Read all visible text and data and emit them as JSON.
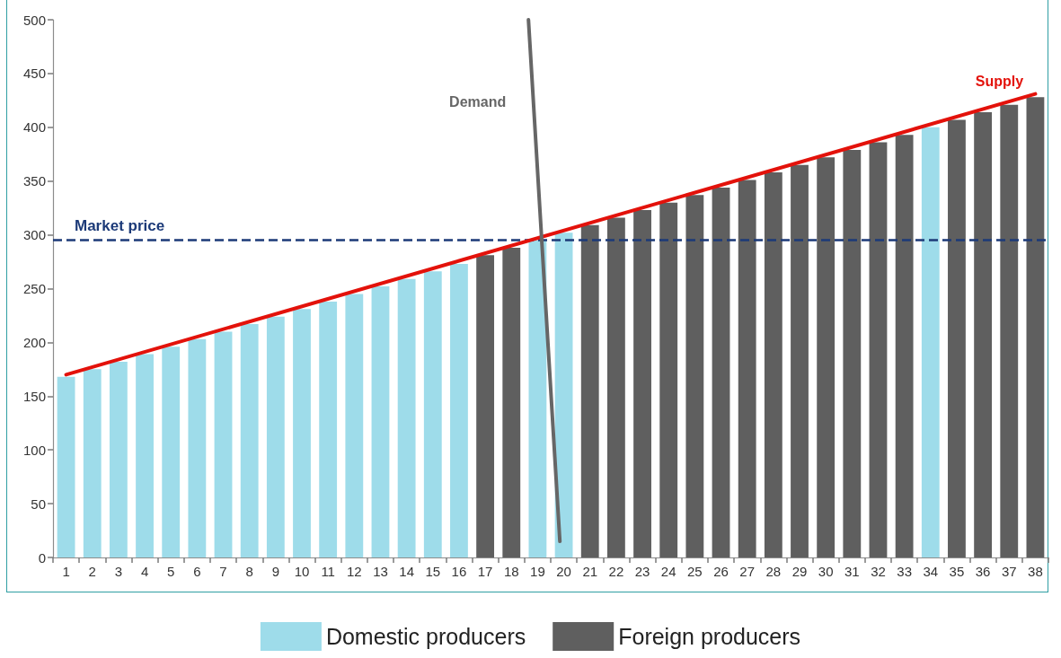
{
  "chart_data": {
    "type": "bar",
    "x": [
      1,
      2,
      3,
      4,
      5,
      6,
      7,
      8,
      9,
      10,
      11,
      12,
      13,
      14,
      15,
      16,
      17,
      18,
      19,
      20,
      21,
      22,
      23,
      24,
      25,
      26,
      27,
      28,
      29,
      30,
      31,
      32,
      33,
      34,
      35,
      36,
      37,
      38
    ],
    "xlim": [
      0.5,
      38.5
    ],
    "xticks": [
      {
        "value": 0.5,
        "label": null
      },
      1,
      {
        "value": 1.5,
        "label": null
      },
      2,
      {
        "value": 2.5,
        "label": null
      },
      3,
      {
        "value": 3.5,
        "label": null
      },
      4,
      {
        "value": 4.5,
        "label": null
      },
      5,
      {
        "value": 5.5,
        "label": null
      },
      6,
      {
        "value": 6.5,
        "label": null
      },
      7,
      {
        "value": 7.5,
        "label": null
      },
      8,
      {
        "value": 8.5,
        "label": null
      },
      9,
      {
        "value": 9.5,
        "label": null
      },
      10,
      {
        "value": 10.5,
        "label": null
      },
      11,
      {
        "value": 11.5,
        "label": null
      },
      12,
      {
        "value": 12.5,
        "label": null
      },
      13,
      {
        "value": 13.5,
        "label": null
      },
      14,
      {
        "value": 14.5,
        "label": null
      },
      15,
      {
        "value": 15.5,
        "label": null
      },
      16,
      {
        "value": 16.5,
        "label": null
      },
      17,
      {
        "value": 17.5,
        "label": null
      },
      18,
      {
        "value": 18.5,
        "label": null
      },
      19,
      {
        "value": 19.5,
        "label": null
      },
      20,
      {
        "value": 20.5,
        "label": null
      },
      21,
      {
        "value": 21.5,
        "label": null
      },
      22,
      {
        "value": 22.5,
        "label": null
      },
      23,
      {
        "value": 23.5,
        "label": null
      },
      24,
      {
        "value": 24.5,
        "label": null
      },
      25,
      {
        "value": 25.5,
        "label": null
      },
      26,
      {
        "value": 26.5,
        "label": null
      },
      27,
      {
        "value": 27.5,
        "label": null
      },
      28,
      {
        "value": 28.5,
        "label": null
      },
      29,
      {
        "value": 29.5,
        "label": null
      },
      30,
      {
        "value": 30.5,
        "label": null
      },
      31,
      {
        "value": 31.5,
        "label": null
      },
      32,
      {
        "value": 32.5,
        "label": null
      },
      33,
      {
        "value": 33.5,
        "label": null
      },
      34,
      {
        "value": 34.5,
        "label": null
      },
      35,
      {
        "value": 35.5,
        "label": null
      },
      36,
      {
        "value": 36.5,
        "label": null
      },
      37,
      {
        "value": 37.5,
        "label": null
      },
      38,
      {
        "value": 38.5,
        "label": null
      }
    ],
    "ylim": [
      0,
      500
    ],
    "yticks": [
      0,
      50,
      100,
      150,
      200,
      250,
      300,
      350,
      400,
      450,
      500
    ],
    "stacked": true,
    "legend": "bottom",
    "series": [
      {
        "name": "Domestic producers",
        "color": "#9edcea",
        "values": [
          168,
          175,
          182,
          189,
          196,
          203,
          210,
          217,
          224,
          231,
          238,
          245,
          252,
          259,
          266,
          273,
          null,
          null,
          295,
          302,
          null,
          null,
          null,
          null,
          null,
          null,
          null,
          null,
          null,
          null,
          null,
          null,
          null,
          400,
          null,
          null,
          null,
          null
        ]
      },
      {
        "name": "Foreign producers",
        "color": "#5f5f5f",
        "values": [
          null,
          null,
          null,
          null,
          null,
          null,
          null,
          null,
          null,
          null,
          null,
          null,
          null,
          null,
          null,
          null,
          281,
          288,
          null,
          null,
          309,
          316,
          323,
          330,
          337,
          344,
          351,
          358,
          365,
          372,
          379,
          386,
          393,
          null,
          407,
          414,
          421,
          428
        ]
      },
      {
        "name": "Supply",
        "type": "line",
        "color": "#e3120b",
        "x": [
          1,
          38
        ],
        "values": [
          170,
          431
        ]
      },
      {
        "name": "Demand",
        "type": "line",
        "color": "#666666",
        "x": [
          18.65,
          19.85
        ],
        "values": [
          500,
          15
        ]
      }
    ],
    "ref_lines": [
      {
        "axis": "y",
        "value": 295,
        "label": "Market price",
        "color": "#1c3a78",
        "line_style": "dashed"
      }
    ]
  }
}
